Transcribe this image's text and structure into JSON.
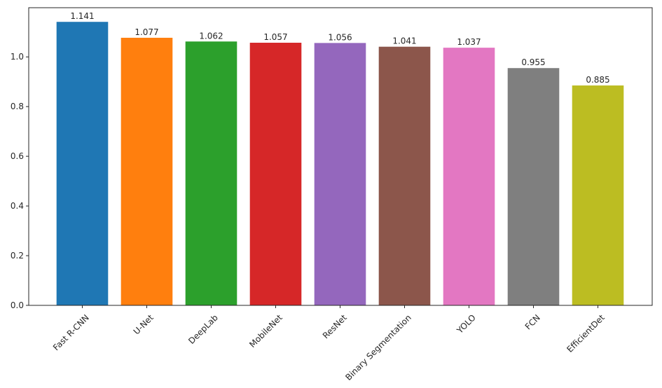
{
  "chart_data": {
    "type": "bar",
    "categories": [
      "Fast R-CNN",
      "U-Net",
      "DeepLab",
      "MobileNet",
      "ResNet",
      "Binary Segmentation",
      "YOLO",
      "FCN",
      "EfficientDet"
    ],
    "values": [
      1.141,
      1.077,
      1.062,
      1.057,
      1.056,
      1.041,
      1.037,
      0.955,
      0.885
    ],
    "value_labels": [
      "1.141",
      "1.077",
      "1.062",
      "1.057",
      "1.056",
      "1.041",
      "1.037",
      "0.955",
      "0.885"
    ],
    "colors": [
      "#1f77b4",
      "#ff7f0e",
      "#2ca02c",
      "#d62728",
      "#9467bd",
      "#8c564b",
      "#e377c2",
      "#7f7f7f",
      "#bcbd22"
    ],
    "yticks": [
      "0.0",
      "0.2",
      "0.4",
      "0.6",
      "0.8",
      "1.0"
    ],
    "ylim": [
      0,
      1.198
    ],
    "grid": false,
    "legend": "none"
  }
}
